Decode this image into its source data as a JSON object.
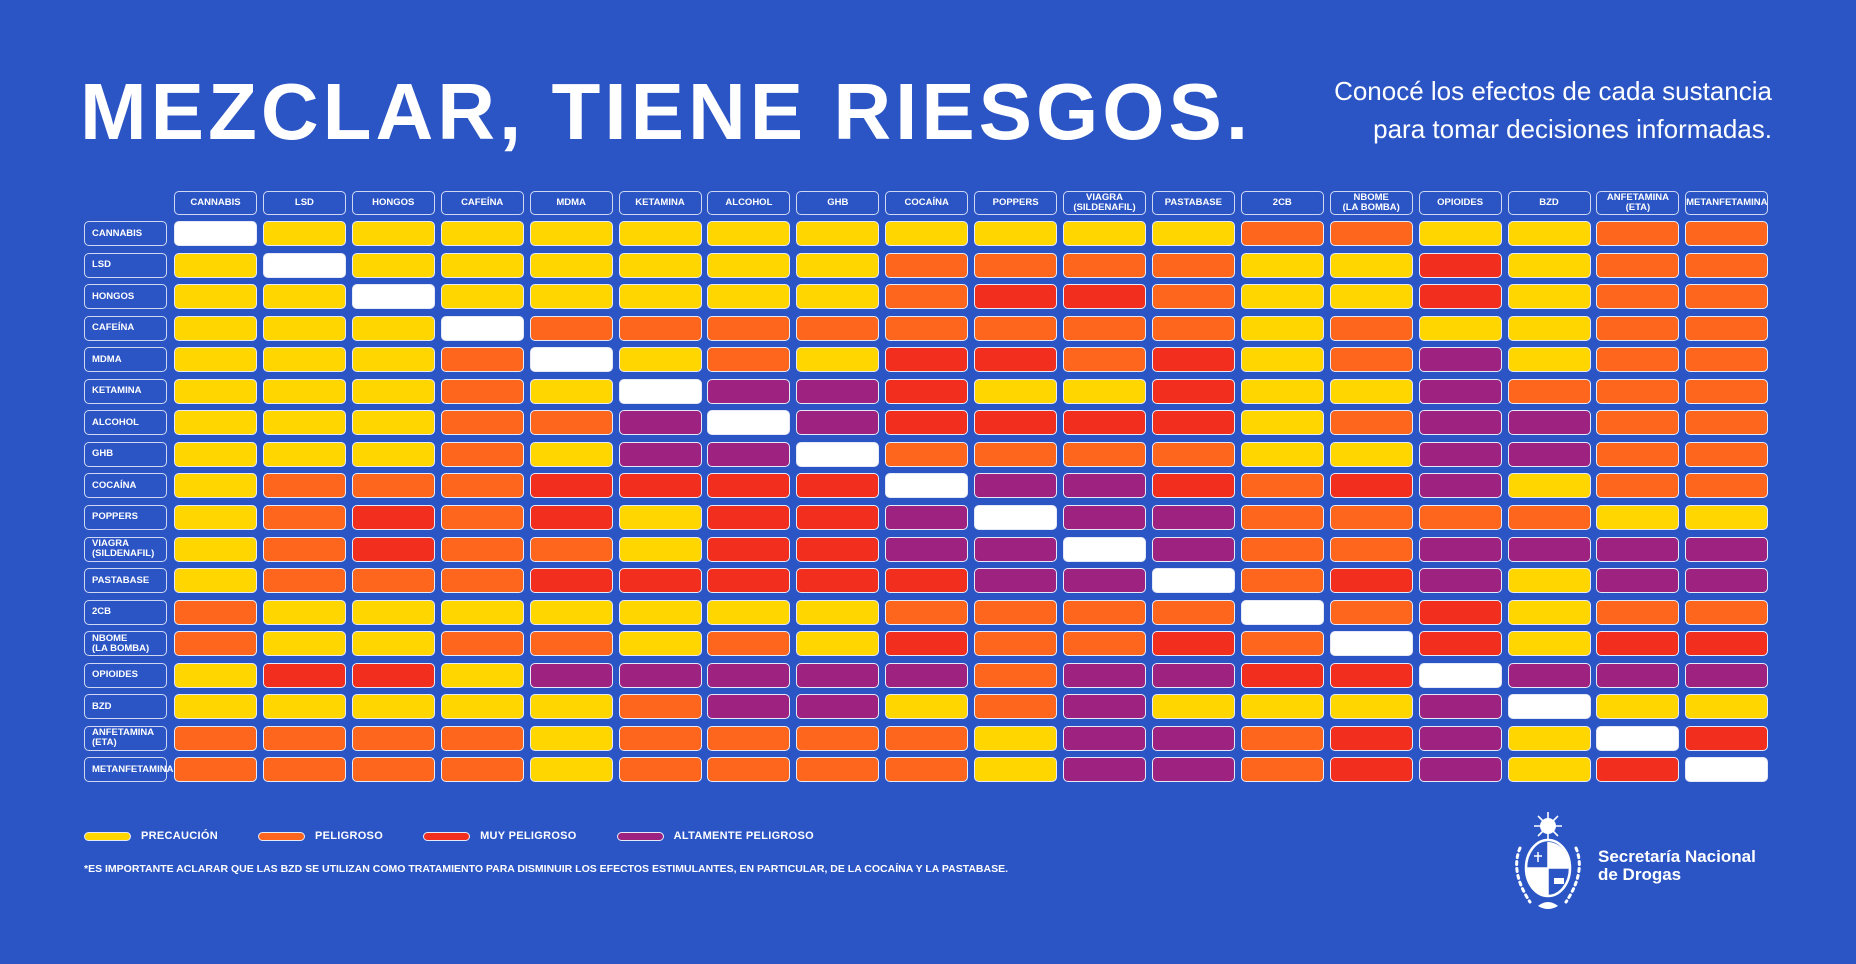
{
  "header": {
    "title": "MEZCLAR, TIENE RIESGOS.",
    "subtitle": "Conocé los efectos de cada sustancia\npara tomar decisiones informadas."
  },
  "chart_data": {
    "type": "heatmap",
    "columns": [
      "CANNABIS",
      "LSD",
      "HONGOS",
      "CAFEÍNA",
      "MDMA",
      "KETAMINA",
      "ALCOHOL",
      "GHB",
      "COCAÍNA",
      "POPPERS",
      "VIAGRA\n(SILDENAFIL)",
      "PASTABASE",
      "2CB",
      "NBOME\n(LA BOMBA)",
      "OPIOIDES",
      "BZD",
      "ANFETAMINA\n(ETA)",
      "METANFETAMINA"
    ],
    "rows": [
      "CANNABIS",
      "LSD",
      "HONGOS",
      "CAFEÍNA",
      "MDMA",
      "KETAMINA",
      "ALCOHOL",
      "GHB",
      "COCAÍNA",
      "POPPERS",
      "VIAGRA\n(SILDENAFIL)",
      "PASTABASE",
      "2CB",
      "NBOME\n(LA BOMBA)",
      "OPIOIDES",
      "BZD",
      "ANFETAMINA\n(ETA)",
      "METANFETAMINA"
    ],
    "levels": {
      "Y": {
        "label": "PRECAUCIÓN",
        "color": "#ffd600"
      },
      "O": {
        "label": "PELIGROSO",
        "color": "#ff661d"
      },
      "R": {
        "label": "MUY PELIGROSO",
        "color": "#f22e1e"
      },
      "P": {
        "label": "ALTAMENTE PELIGROSO",
        "color": "#9e2380"
      },
      "W": {
        "label": "",
        "color": "#ffffff"
      }
    },
    "legend_order": [
      "Y",
      "O",
      "R",
      "P"
    ],
    "legend_placement": "bottom-left",
    "values": [
      [
        "W",
        "Y",
        "Y",
        "Y",
        "Y",
        "Y",
        "Y",
        "Y",
        "Y",
        "Y",
        "Y",
        "Y",
        "O",
        "O",
        "Y",
        "Y",
        "O",
        "O"
      ],
      [
        "Y",
        "W",
        "Y",
        "Y",
        "Y",
        "Y",
        "Y",
        "Y",
        "O",
        "O",
        "O",
        "O",
        "Y",
        "Y",
        "R",
        "Y",
        "O",
        "O"
      ],
      [
        "Y",
        "Y",
        "W",
        "Y",
        "Y",
        "Y",
        "Y",
        "Y",
        "O",
        "R",
        "R",
        "O",
        "Y",
        "Y",
        "R",
        "Y",
        "O",
        "O"
      ],
      [
        "Y",
        "Y",
        "Y",
        "W",
        "O",
        "O",
        "O",
        "O",
        "O",
        "O",
        "O",
        "O",
        "Y",
        "O",
        "Y",
        "Y",
        "O",
        "O"
      ],
      [
        "Y",
        "Y",
        "Y",
        "O",
        "W",
        "Y",
        "O",
        "Y",
        "R",
        "R",
        "O",
        "R",
        "Y",
        "O",
        "P",
        "Y",
        "O",
        "O"
      ],
      [
        "Y",
        "Y",
        "Y",
        "O",
        "Y",
        "W",
        "P",
        "P",
        "R",
        "Y",
        "Y",
        "R",
        "Y",
        "Y",
        "P",
        "O",
        "O",
        "O"
      ],
      [
        "Y",
        "Y",
        "Y",
        "O",
        "O",
        "P",
        "W",
        "P",
        "R",
        "R",
        "R",
        "R",
        "Y",
        "O",
        "P",
        "P",
        "O",
        "O"
      ],
      [
        "Y",
        "Y",
        "Y",
        "O",
        "Y",
        "P",
        "P",
        "W",
        "O",
        "O",
        "O",
        "O",
        "Y",
        "Y",
        "P",
        "P",
        "O",
        "O"
      ],
      [
        "Y",
        "O",
        "O",
        "O",
        "R",
        "R",
        "R",
        "R",
        "W",
        "P",
        "P",
        "R",
        "O",
        "R",
        "P",
        "Y",
        "O",
        "O"
      ],
      [
        "Y",
        "O",
        "R",
        "O",
        "R",
        "Y",
        "R",
        "R",
        "P",
        "W",
        "P",
        "P",
        "O",
        "O",
        "O",
        "O",
        "Y",
        "Y"
      ],
      [
        "Y",
        "O",
        "R",
        "O",
        "O",
        "Y",
        "R",
        "R",
        "P",
        "P",
        "W",
        "P",
        "O",
        "O",
        "P",
        "P",
        "P",
        "P"
      ],
      [
        "Y",
        "O",
        "O",
        "O",
        "R",
        "R",
        "R",
        "R",
        "R",
        "P",
        "P",
        "W",
        "O",
        "R",
        "P",
        "Y",
        "P",
        "P"
      ],
      [
        "O",
        "Y",
        "Y",
        "Y",
        "Y",
        "Y",
        "Y",
        "Y",
        "O",
        "O",
        "O",
        "O",
        "W",
        "O",
        "R",
        "Y",
        "O",
        "O"
      ],
      [
        "O",
        "Y",
        "Y",
        "O",
        "O",
        "Y",
        "O",
        "Y",
        "R",
        "O",
        "O",
        "R",
        "O",
        "W",
        "R",
        "Y",
        "R",
        "R"
      ],
      [
        "Y",
        "R",
        "R",
        "Y",
        "P",
        "P",
        "P",
        "P",
        "P",
        "O",
        "P",
        "P",
        "R",
        "R",
        "W",
        "P",
        "P",
        "P"
      ],
      [
        "Y",
        "Y",
        "Y",
        "Y",
        "Y",
        "O",
        "P",
        "P",
        "Y",
        "O",
        "P",
        "Y",
        "Y",
        "Y",
        "P",
        "W",
        "Y",
        "Y"
      ],
      [
        "O",
        "O",
        "O",
        "O",
        "Y",
        "O",
        "O",
        "O",
        "O",
        "Y",
        "P",
        "P",
        "O",
        "R",
        "P",
        "Y",
        "W",
        "R"
      ],
      [
        "O",
        "O",
        "O",
        "O",
        "Y",
        "O",
        "O",
        "O",
        "O",
        "Y",
        "P",
        "P",
        "O",
        "R",
        "P",
        "Y",
        "R",
        "W"
      ]
    ]
  },
  "footnote": "*ES IMPORTANTE ACLARAR QUE LAS BZD SE UTILIZAN COMO TRATAMIENTO PARA DISMINUIR LOS EFECTOS ESTIMULANTES, EN PARTICULAR, DE LA COCAÍNA Y LA PASTABASE.",
  "organization": {
    "name": "Secretaría Nacional\nde Drogas",
    "logo_icon": "uruguay-coat-of-arms-icon"
  },
  "colors": {
    "background": "#2b55c4"
  }
}
